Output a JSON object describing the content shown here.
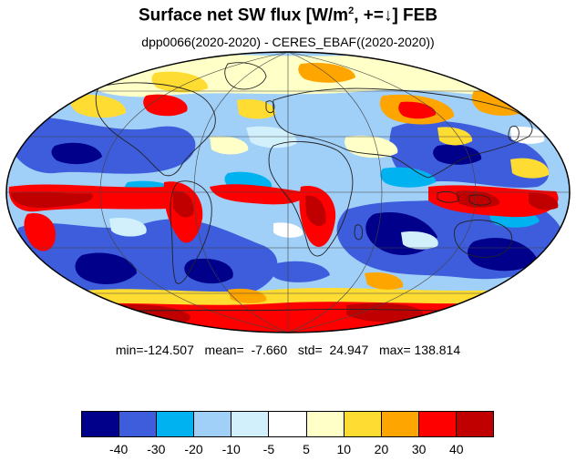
{
  "title": {
    "main": "Surface net SW flux [W/m",
    "sup": "2",
    "rest": ", +=↓]  FEB"
  },
  "subtitle": "dpp0066(2020-2020) - CERES_EBAF((2020-2020))",
  "stats": "min=-124.507   mean=  -7.660   std=  24.947   max= 138.814",
  "colorbar": {
    "colors": [
      "#00008b",
      "#3d5ddc",
      "#00b3f0",
      "#a0cff8",
      "#d2f0fc",
      "#ffffff",
      "#ffffc8",
      "#ffdc32",
      "#ffa500",
      "#ff0000",
      "#c00000"
    ],
    "tick_labels": [
      "-40",
      "-30",
      "-20",
      "-10",
      "-5",
      "5",
      "10",
      "20",
      "30",
      "40"
    ]
  },
  "map": {
    "projection": "Mollweide",
    "variable": "difference of surface net shortwave flux",
    "grid": true,
    "coastlines": true
  }
}
